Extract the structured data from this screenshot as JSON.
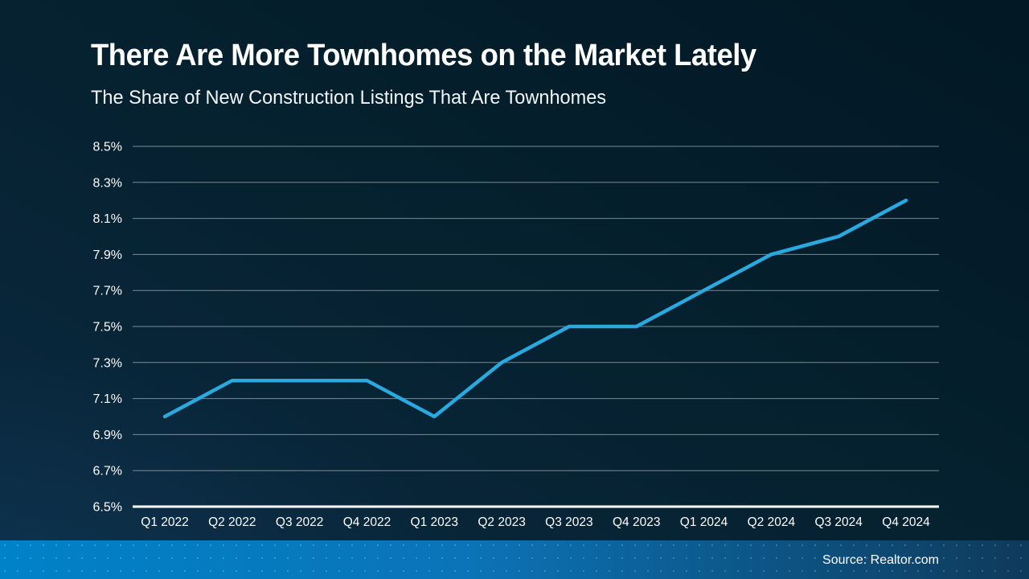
{
  "header": {
    "title": "There Are More Townhomes on the Market Lately",
    "subtitle": "The Share of New Construction Listings That Are Townhomes"
  },
  "footer": {
    "source": "Source: Realtor.com"
  },
  "colors": {
    "background_top_right": "#021824",
    "background_bottom_left": "#0b2a41",
    "line": "#29a9e0",
    "gridline": "#98a5ae",
    "axis_line": "#ffffff",
    "text": "#ffffff",
    "footer_gradient_left": "#0082c8",
    "footer_gradient_right": "#0e3a5a"
  },
  "chart_data": {
    "type": "line",
    "title": "There Are More Townhomes on the Market Lately",
    "subtitle": "The Share of New Construction Listings That Are Townhomes",
    "categories": [
      "Q1 2022",
      "Q2 2022",
      "Q3 2022",
      "Q4 2022",
      "Q1 2023",
      "Q2 2023",
      "Q3 2023",
      "Q4 2023",
      "Q1 2024",
      "Q2 2024",
      "Q3 2024",
      "Q4 2024"
    ],
    "values": [
      7.0,
      7.2,
      7.2,
      7.2,
      7.0,
      7.3,
      7.5,
      7.5,
      7.7,
      7.9,
      8.0,
      8.2
    ],
    "unit": "%",
    "xlabel": "",
    "ylabel": "",
    "ylim": [
      6.5,
      8.5
    ],
    "ytick_step": 0.2,
    "ytick_labels": [
      "8.5%",
      "8.3%",
      "8.1%",
      "7.9%",
      "7.7%",
      "7.5%",
      "7.3%",
      "7.1%",
      "6.9%",
      "6.7%",
      "6.5%"
    ],
    "grid": true,
    "legend": false
  }
}
